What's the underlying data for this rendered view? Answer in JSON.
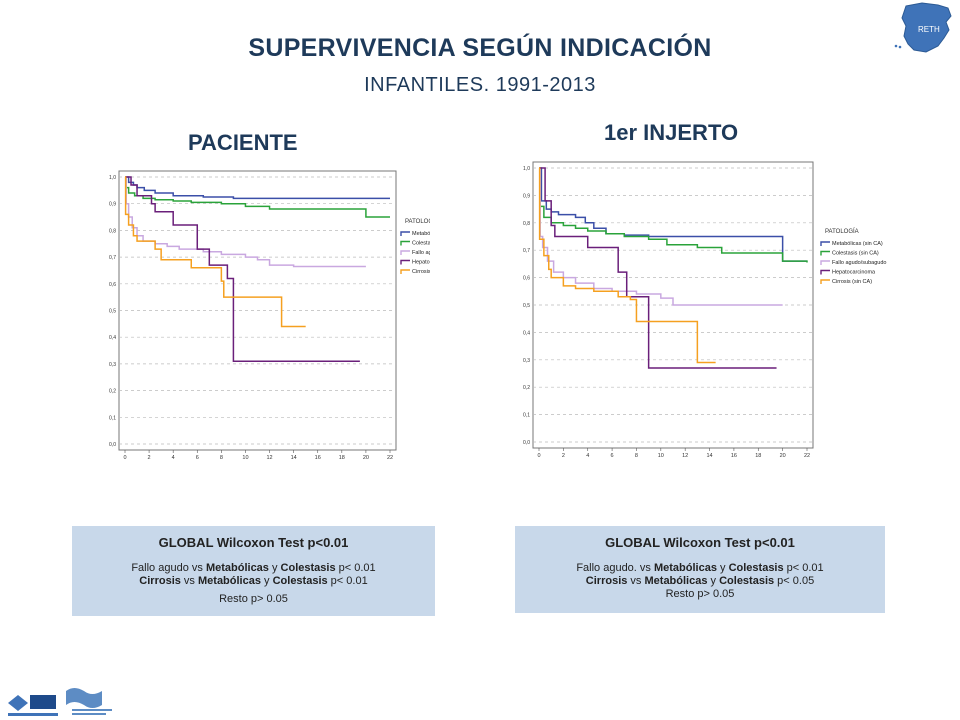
{
  "header": {
    "title": "SUPERVIVENCIA SEGÚN INDICACIÓN",
    "subtitle": "INFANTILES. 1991-2013"
  },
  "panels": [
    {
      "title": "PACIENTE"
    },
    {
      "title": "1er INJERTO"
    }
  ],
  "boxes": [
    {
      "heading": "GLOBAL Wilcoxon Test p<0.01",
      "line1": {
        "a": "Fallo agudo",
        "vs1": " vs ",
        "b": "Metabólicas",
        "y": " y ",
        "c": "Colestasis",
        "p": " p< 0.01"
      },
      "line2": {
        "a": "Cirrosis",
        "vs1": " vs ",
        "b": "Metabólicas",
        "y": " y ",
        "c": "Colestasis",
        "p": " p< 0.01"
      },
      "line3": "Resto p> 0.05"
    },
    {
      "heading": "GLOBAL Wilcoxon Test p<0.01",
      "line1": {
        "a": "Fallo agudo.",
        "vs1": " vs ",
        "b": "Metabólicas",
        "y": " y ",
        "c": "Colestasis",
        "p": "  p< 0.01"
      },
      "line2": {
        "a": "Cirrosis",
        "vs1": " vs ",
        "b": "Metabólicas",
        "y": " y ",
        "c": "Colestasis",
        "p": " p< 0.05"
      },
      "line3": "Resto p> 0.05"
    }
  ],
  "logos": {
    "map_label": "RETH"
  },
  "chart_data": [
    {
      "type": "line",
      "step": true,
      "xlim": [
        0,
        22
      ],
      "ylim": [
        0,
        1
      ],
      "xticks": [
        "0",
        "2",
        "4",
        "6",
        "8",
        "10",
        "12",
        "14",
        "16",
        "18",
        "20",
        "22"
      ],
      "yticks": [
        "0,0",
        "0,1",
        "0,2",
        "0,3",
        "0,4",
        "0,5",
        "0,6",
        "0,7",
        "0,8",
        "0,9",
        "1,0"
      ],
      "grid": true,
      "legend_title": "PATOLOGÍA",
      "legend_position": "right",
      "series": [
        {
          "name": "Metabólicas (sin CA)",
          "color": "#3b4fa8",
          "points": [
            [
              0,
              1.0
            ],
            [
              0.3,
              0.98
            ],
            [
              0.7,
              0.97
            ],
            [
              1,
              0.96
            ],
            [
              1.6,
              0.95
            ],
            [
              2.5,
              0.94
            ],
            [
              4,
              0.93
            ],
            [
              6.5,
              0.925
            ],
            [
              9,
              0.92
            ],
            [
              22,
              0.92
            ]
          ]
        },
        {
          "name": "Colestasis (sin CA)",
          "color": "#2aa33a",
          "points": [
            [
              0,
              1.0
            ],
            [
              0.1,
              0.96
            ],
            [
              0.3,
              0.94
            ],
            [
              0.8,
              0.93
            ],
            [
              1.5,
              0.92
            ],
            [
              2.5,
              0.915
            ],
            [
              4,
              0.91
            ],
            [
              5.5,
              0.905
            ],
            [
              8,
              0.9
            ],
            [
              10,
              0.89
            ],
            [
              12,
              0.88
            ],
            [
              16,
              0.88
            ],
            [
              20,
              0.88
            ],
            [
              20,
              0.85
            ],
            [
              22,
              0.85
            ]
          ]
        },
        {
          "name": "Fallo agudo/subagudo",
          "color": "#c9a8e0",
          "points": [
            [
              0,
              1.0
            ],
            [
              0.1,
              0.9
            ],
            [
              0.3,
              0.85
            ],
            [
              0.6,
              0.81
            ],
            [
              1,
              0.78
            ],
            [
              1.5,
              0.76
            ],
            [
              2.5,
              0.75
            ],
            [
              3.5,
              0.74
            ],
            [
              4.5,
              0.73
            ],
            [
              6.5,
              0.72
            ],
            [
              8,
              0.71
            ],
            [
              10,
              0.7
            ],
            [
              11,
              0.69
            ],
            [
              12,
              0.67
            ],
            [
              14,
              0.665
            ],
            [
              20,
              0.665
            ]
          ]
        },
        {
          "name": "Hepatocarcinoma",
          "color": "#6a1f7a",
          "points": [
            [
              0,
              1.0
            ],
            [
              0.5,
              0.97
            ],
            [
              1,
              0.93
            ],
            [
              2.2,
              0.9
            ],
            [
              2.5,
              0.87
            ],
            [
              4,
              0.82
            ],
            [
              6,
              0.73
            ],
            [
              7,
              0.67
            ],
            [
              8.5,
              0.62
            ],
            [
              9,
              0.31
            ],
            [
              19.5,
              0.31
            ]
          ]
        },
        {
          "name": "Cirrosis (sin CA)",
          "color": "#f5a020",
          "points": [
            [
              0,
              1.0
            ],
            [
              0.05,
              0.86
            ],
            [
              0.3,
              0.82
            ],
            [
              0.7,
              0.78
            ],
            [
              1,
              0.76
            ],
            [
              2.5,
              0.73
            ],
            [
              3,
              0.69
            ],
            [
              5.5,
              0.66
            ],
            [
              8,
              0.61
            ],
            [
              8.2,
              0.55
            ],
            [
              12.5,
              0.55
            ],
            [
              13,
              0.44
            ],
            [
              15,
              0.44
            ]
          ]
        }
      ]
    },
    {
      "type": "line",
      "step": true,
      "xlim": [
        0,
        22
      ],
      "ylim": [
        0,
        1
      ],
      "xticks": [
        "0",
        "2",
        "4",
        "6",
        "8",
        "10",
        "12",
        "14",
        "16",
        "18",
        "20",
        "22"
      ],
      "yticks": [
        "0,0",
        "0,1",
        "0,2",
        "0,3",
        "0,4",
        "0,5",
        "0,6",
        "0,7",
        "0,8",
        "0,9",
        "1,0"
      ],
      "grid": true,
      "legend_title": "PATOLOGÍA",
      "legend_position": "right",
      "series": [
        {
          "name": "Metabólicas (sin CA)",
          "color": "#3b4fa8",
          "points": [
            [
              0,
              1.0
            ],
            [
              0.2,
              0.88
            ],
            [
              0.6,
              0.85
            ],
            [
              1,
              0.84
            ],
            [
              1.6,
              0.83
            ],
            [
              3,
              0.82
            ],
            [
              3.8,
              0.8
            ],
            [
              4.5,
              0.78
            ],
            [
              5.5,
              0.76
            ],
            [
              7,
              0.755
            ],
            [
              9,
              0.75
            ],
            [
              15,
              0.75
            ],
            [
              20,
              0.75
            ],
            [
              20,
              0.66
            ],
            [
              22,
              0.66
            ]
          ]
        },
        {
          "name": "Colestasis (sin CA)",
          "color": "#2aa33a",
          "points": [
            [
              0,
              1.0
            ],
            [
              0.1,
              0.86
            ],
            [
              0.4,
              0.82
            ],
            [
              1,
              0.8
            ],
            [
              2,
              0.79
            ],
            [
              3,
              0.78
            ],
            [
              4,
              0.77
            ],
            [
              5.5,
              0.76
            ],
            [
              7,
              0.75
            ],
            [
              9,
              0.74
            ],
            [
              10.5,
              0.72
            ],
            [
              13,
              0.71
            ],
            [
              15,
              0.69
            ],
            [
              17,
              0.69
            ],
            [
              20,
              0.66
            ],
            [
              22,
              0.655
            ]
          ]
        },
        {
          "name": "Fallo agudo/subagudo",
          "color": "#c9a8e0",
          "points": [
            [
              0,
              1.0
            ],
            [
              0.1,
              0.75
            ],
            [
              0.3,
              0.71
            ],
            [
              0.7,
              0.66
            ],
            [
              1.2,
              0.62
            ],
            [
              2,
              0.6
            ],
            [
              3,
              0.58
            ],
            [
              4.5,
              0.56
            ],
            [
              6,
              0.55
            ],
            [
              8,
              0.54
            ],
            [
              10,
              0.525
            ],
            [
              11,
              0.5
            ],
            [
              20,
              0.5
            ]
          ]
        },
        {
          "name": "Hepatocarcinoma",
          "color": "#6a1f7a",
          "points": [
            [
              0,
              1.0
            ],
            [
              0.5,
              0.88
            ],
            [
              1,
              0.79
            ],
            [
              1.3,
              0.75
            ],
            [
              4,
              0.71
            ],
            [
              6.5,
              0.62
            ],
            [
              7.2,
              0.53
            ],
            [
              8.5,
              0.53
            ],
            [
              9,
              0.27
            ],
            [
              19.5,
              0.27
            ]
          ]
        },
        {
          "name": "Cirrosis (sin CA)",
          "color": "#f5a020",
          "points": [
            [
              0,
              1.0
            ],
            [
              0.05,
              0.74
            ],
            [
              0.4,
              0.68
            ],
            [
              0.8,
              0.63
            ],
            [
              1,
              0.6
            ],
            [
              2,
              0.57
            ],
            [
              3,
              0.56
            ],
            [
              4.5,
              0.55
            ],
            [
              6.5,
              0.53
            ],
            [
              7.5,
              0.52
            ],
            [
              8,
              0.44
            ],
            [
              12.5,
              0.44
            ],
            [
              13,
              0.29
            ],
            [
              14.5,
              0.29
            ]
          ]
        }
      ]
    }
  ]
}
